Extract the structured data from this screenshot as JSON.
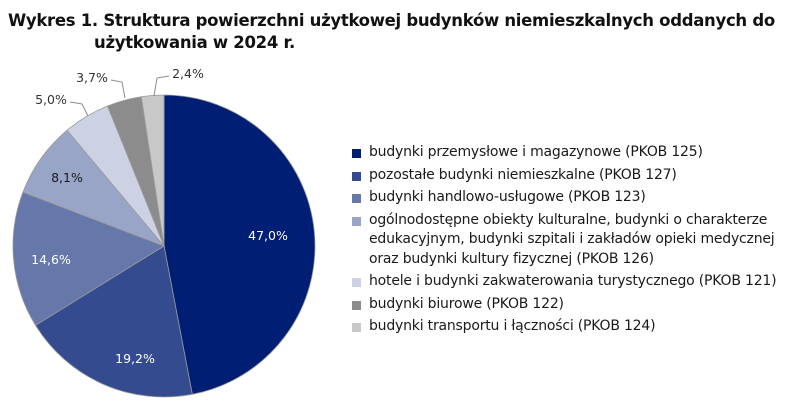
{
  "title": {
    "line1": "Wykres 1. Struktura powierzchni użytkowej budynków niemieszkalnych oddanych do",
    "line2": "użytkowania w 2024 r."
  },
  "chart_data": {
    "type": "pie",
    "title": "Wykres 1. Struktura powierzchni użytkowej budynków niemieszkalnych oddanych do użytkowania w 2024 r.",
    "start_angle": "12 o'clock, clockwise",
    "legend_position": "right",
    "categories": [
      "budynki przemysłowe i magazynowe (PKOB 125)",
      "pozostałe budynki niemieszkalne (PKOB 127)",
      "budynki handlowo-usługowe (PKOB 123)",
      "ogólnodostępne obiekty kulturalne, budynki o charakterze edukacyjnym, budynki szpitali i zakładów opieki medycznej oraz budynki kultury fizycznej (PKOB 126)",
      "hotele i budynki zakwaterowania turystycznego (PKOB 121)",
      "budynki biurowe (PKOB 122)",
      "budynki transportu i łączności (PKOB 124)"
    ],
    "values": [
      47.0,
      19.2,
      14.6,
      8.1,
      5.0,
      3.7,
      2.4
    ],
    "labels": [
      "47,0%",
      "19,2%",
      "14,6%",
      "8,1%",
      "5,0%",
      "3,7%",
      "2,4%"
    ],
    "colors": [
      "#001e73",
      "#344b90",
      "#6677aa",
      "#99a5c7",
      "#ccd2e3",
      "#8c8c8c",
      "#c8c8c8"
    ]
  },
  "legend": {
    "items": [
      {
        "label": "budynki przemysłowe i magazynowe (PKOB 125)",
        "color": "#001e73"
      },
      {
        "label": "pozostałe budynki niemieszkalne (PKOB 127)",
        "color": "#344b90"
      },
      {
        "label": "budynki handlowo-usługowe (PKOB 123)",
        "color": "#6677aa"
      },
      {
        "label": "ogólnodostępne obiekty kulturalne, budynki o charakterze edukacyjnym, budynki szpitali i zakładów opieki medycznej oraz budynki kultury fizycznej (PKOB 126)",
        "color": "#99a5c7"
      },
      {
        "label": "hotele i budynki zakwaterowania turystycznego (PKOB 121)",
        "color": "#ccd2e3"
      },
      {
        "label": "budynki biurowe (PKOB 122)",
        "color": "#8c8c8c"
      },
      {
        "label": "budynki transportu i łączności (PKOB 124)",
        "color": "#c8c8c8"
      }
    ]
  }
}
